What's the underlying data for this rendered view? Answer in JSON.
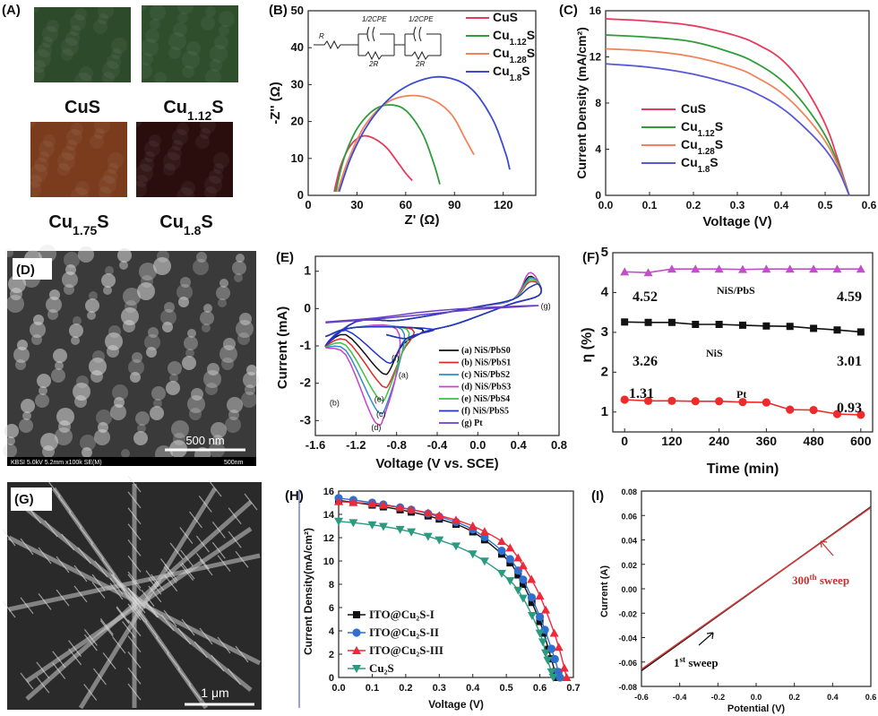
{
  "panels": {
    "A": {
      "letter": "(A)",
      "labels": [
        {
          "base": "CuS",
          "sub": ""
        },
        {
          "base": "Cu",
          "sub": "1.12",
          "tail": "S"
        },
        {
          "base": "Cu",
          "sub": "1.75",
          "tail": "S"
        },
        {
          "base": "Cu",
          "sub": "1.8",
          "tail": "S"
        }
      ],
      "colors": [
        "#2d4a2a",
        "#2e4e2c",
        "#7a3c1c",
        "#2a0d0d"
      ]
    },
    "D": {
      "letter": "(D)",
      "scale": "500 nm",
      "footer": "KBSI 5.0kV 5.2mm x100k SE(M)",
      "footer_right": "500nm"
    },
    "G": {
      "letter": "(G)",
      "scale": "1 μm"
    }
  },
  "chart_data": [
    {
      "id": "B",
      "type": "line",
      "letter": "(B)",
      "xlabel": "Z' (Ω)",
      "ylabel": "-Z'' (Ω)",
      "xlim": [
        0,
        140
      ],
      "ylim": [
        0,
        50
      ],
      "xticks": [
        0,
        30,
        60,
        90,
        120
      ],
      "yticks": [
        0,
        10,
        20,
        30,
        40,
        50
      ],
      "circuit_labels": [
        "R",
        "1/2CPE",
        "2R",
        "1/2CPE",
        "2R"
      ],
      "series": [
        {
          "name": "CuS",
          "sub": "",
          "color": "#e8395c",
          "points": [
            [
              16,
              1
            ],
            [
              20,
              8
            ],
            [
              26,
              13.5
            ],
            [
              33,
              16
            ],
            [
              40,
              15.5
            ],
            [
              48,
              13
            ],
            [
              55,
              9
            ],
            [
              60,
              6
            ],
            [
              64,
              4
            ]
          ]
        },
        {
          "name": "Cu",
          "sub": "1.12",
          "tail": "S",
          "color": "#2e9d3a",
          "points": [
            [
              17,
              1
            ],
            [
              22,
              10
            ],
            [
              30,
              18
            ],
            [
              40,
              23
            ],
            [
              50,
              24.5
            ],
            [
              60,
              23
            ],
            [
              70,
              17
            ],
            [
              77,
              9
            ],
            [
              81,
              3
            ]
          ]
        },
        {
          "name": "Cu",
          "sub": "1.28",
          "tail": "S",
          "color": "#f0845a",
          "points": [
            [
              18,
              1
            ],
            [
              25,
              10
            ],
            [
              35,
              19
            ],
            [
              48,
              25
            ],
            [
              62,
              27
            ],
            [
              76,
              26
            ],
            [
              88,
              22
            ],
            [
              97,
              15
            ],
            [
              102,
              11
            ]
          ]
        },
        {
          "name": "Cu",
          "sub": "1.8",
          "tail": "S",
          "color": "#3a4bd1",
          "points": [
            [
              19,
              1
            ],
            [
              27,
              11
            ],
            [
              38,
              20
            ],
            [
              52,
              27
            ],
            [
              68,
              31
            ],
            [
              84,
              32
            ],
            [
              100,
              29
            ],
            [
              113,
              21
            ],
            [
              121,
              12
            ],
            [
              124,
              7
            ]
          ]
        }
      ]
    },
    {
      "id": "C",
      "type": "line",
      "letter": "(C)",
      "xlabel": "Voltage (V)",
      "ylabel": "Current Density (mA/cm²)",
      "xlim": [
        0,
        0.6
      ],
      "ylim": [
        0,
        16
      ],
      "xticks": [
        "0.0",
        "0.1",
        "0.2",
        "0.3",
        "0.4",
        "0.5",
        "0.6"
      ],
      "yticks": [
        0,
        4,
        8,
        12,
        16
      ],
      "series": [
        {
          "name": "CuS",
          "sub": "",
          "color": "#e8395c",
          "points": [
            [
              0,
              15.3
            ],
            [
              0.1,
              15.1
            ],
            [
              0.2,
              14.7
            ],
            [
              0.3,
              13.8
            ],
            [
              0.35,
              13.0
            ],
            [
              0.4,
              11.8
            ],
            [
              0.45,
              9.6
            ],
            [
              0.5,
              6.2
            ],
            [
              0.53,
              3.0
            ],
            [
              0.555,
              0
            ]
          ]
        },
        {
          "name": "Cu",
          "sub": "1.12",
          "tail": "S",
          "color": "#2e9d3a",
          "points": [
            [
              0,
              13.9
            ],
            [
              0.1,
              13.7
            ],
            [
              0.2,
              13.3
            ],
            [
              0.3,
              12.2
            ],
            [
              0.35,
              11.3
            ],
            [
              0.4,
              10.0
            ],
            [
              0.45,
              8.0
            ],
            [
              0.5,
              5.2
            ],
            [
              0.53,
              2.7
            ],
            [
              0.555,
              0
            ]
          ]
        },
        {
          "name": "Cu",
          "sub": "1.28",
          "tail": "S",
          "color": "#f0845a",
          "points": [
            [
              0,
              12.7
            ],
            [
              0.1,
              12.5
            ],
            [
              0.2,
              12.0
            ],
            [
              0.3,
              11.0
            ],
            [
              0.35,
              10.1
            ],
            [
              0.4,
              8.9
            ],
            [
              0.45,
              7.1
            ],
            [
              0.5,
              4.7
            ],
            [
              0.53,
              2.5
            ],
            [
              0.555,
              0
            ]
          ]
        },
        {
          "name": "Cu",
          "sub": "1.8",
          "tail": "S",
          "color": "#5858d6",
          "points": [
            [
              0,
              11.4
            ],
            [
              0.1,
              11.1
            ],
            [
              0.2,
              10.5
            ],
            [
              0.3,
              9.5
            ],
            [
              0.35,
              8.7
            ],
            [
              0.4,
              7.6
            ],
            [
              0.45,
              6.0
            ],
            [
              0.5,
              4.0
            ],
            [
              0.53,
              2.2
            ],
            [
              0.555,
              0
            ]
          ]
        }
      ]
    },
    {
      "id": "E",
      "type": "line",
      "letter": "(E)",
      "xlabel": "Voltage (V vs. SCE)",
      "ylabel": "Current (mA)",
      "xlim": [
        -1.6,
        0.8
      ],
      "ylim": [
        -3.4,
        1.4
      ],
      "xticks": [
        "-1.6",
        "-1.2",
        "-0.8",
        "-0.4",
        "0.0",
        "0.4",
        "0.8"
      ],
      "yticks": [
        -3,
        -2,
        -1,
        0,
        1
      ],
      "series": [
        {
          "name": "(a) NiS/PbS0",
          "color": "#111111",
          "min": [
            -0.92,
            -1.75
          ],
          "start": -0.55,
          "top": 0.55,
          "amp": 0.85
        },
        {
          "name": "(b) NiS/PbS1",
          "color": "#e02a2a",
          "min": [
            -0.92,
            -2.1
          ],
          "start": -0.65,
          "top": 0.55,
          "amp": 0.7
        },
        {
          "name": "(c) NiS/PbS2",
          "color": "#2e8bcf",
          "min": [
            -0.96,
            -2.8
          ],
          "start": -0.75,
          "top": 0.6,
          "amp": 0.8
        },
        {
          "name": "(d) NiS/PbS3",
          "color": "#c842c8",
          "min": [
            -0.98,
            -3.1
          ],
          "start": -0.8,
          "top": 0.6,
          "amp": 0.95
        },
        {
          "name": "(e) NiS/PbS4",
          "color": "#3fbf3f",
          "min": [
            -0.95,
            -2.45
          ],
          "start": -0.7,
          "top": 0.58,
          "amp": 0.75
        },
        {
          "name": "(f) NiS/PbS5",
          "color": "#2233cc",
          "min": [
            -0.88,
            -1.45
          ],
          "start": -0.45,
          "top": 0.55,
          "amp": 0.55
        },
        {
          "name": "(g) Pt",
          "color": "#6a3fc8",
          "flat": true
        }
      ],
      "annotations": [
        "(a)",
        "(b)",
        "(c)",
        "(d)",
        "(e)",
        "(f)",
        "(g)"
      ]
    },
    {
      "id": "F",
      "type": "line",
      "letter": "(F)",
      "xlabel": "Time (min)",
      "ylabel": "η (%)",
      "xlim": [
        -30,
        630
      ],
      "ylim": [
        0.5,
        5
      ],
      "xticks": [
        0,
        120,
        240,
        360,
        480,
        600
      ],
      "yticks": [
        1,
        2,
        3,
        4,
        5
      ],
      "series": [
        {
          "name": "NiS/PbS",
          "color": "#c050c8",
          "marker": "triangle",
          "points": [
            [
              0,
              4.52
            ],
            [
              60,
              4.5
            ],
            [
              120,
              4.59
            ],
            [
              180,
              4.59
            ],
            [
              240,
              4.59
            ],
            [
              300,
              4.58
            ],
            [
              360,
              4.59
            ],
            [
              420,
              4.59
            ],
            [
              480,
              4.59
            ],
            [
              540,
              4.59
            ],
            [
              600,
              4.59
            ]
          ]
        },
        {
          "name": "NiS",
          "color": "#111111",
          "marker": "square",
          "points": [
            [
              0,
              3.26
            ],
            [
              60,
              3.25
            ],
            [
              120,
              3.25
            ],
            [
              180,
              3.2
            ],
            [
              240,
              3.2
            ],
            [
              300,
              3.18
            ],
            [
              360,
              3.16
            ],
            [
              420,
              3.15
            ],
            [
              480,
              3.1
            ],
            [
              540,
              3.06
            ],
            [
              600,
              3.01
            ]
          ]
        },
        {
          "name": "Pt",
          "color": "#ee2a2a",
          "marker": "circle",
          "points": [
            [
              0,
              1.31
            ],
            [
              60,
              1.28
            ],
            [
              120,
              1.28
            ],
            [
              180,
              1.27
            ],
            [
              240,
              1.27
            ],
            [
              300,
              1.25
            ],
            [
              360,
              1.24
            ],
            [
              420,
              1.06
            ],
            [
              480,
              1.05
            ],
            [
              540,
              0.95
            ],
            [
              600,
              0.93
            ]
          ]
        }
      ],
      "value_labels": [
        "4.52",
        "4.59",
        "3.26",
        "3.01",
        "1.31",
        "0.93"
      ],
      "series_labels": [
        "NiS/PbS",
        "NiS",
        "Pt"
      ]
    },
    {
      "id": "H",
      "type": "line",
      "letter": "(H)",
      "xlabel": "Voltage (V)",
      "ylabel": "Current Density(mA/cm²)",
      "xlim": [
        0,
        0.7
      ],
      "ylim": [
        0,
        16
      ],
      "xticks": [
        "0.0",
        "0.1",
        "0.2",
        "0.3",
        "0.4",
        "0.5",
        "0.6",
        "0.7"
      ],
      "yticks": [
        0,
        2,
        4,
        6,
        8,
        10,
        12,
        14,
        16
      ],
      "series": [
        {
          "name": "ITO@Cu₂S-I",
          "color": "#111111",
          "marker": "square",
          "points": [
            [
              0,
              15.2
            ],
            [
              0.1,
              14.8
            ],
            [
              0.2,
              14.3
            ],
            [
              0.3,
              13.6
            ],
            [
              0.4,
              12.5
            ],
            [
              0.5,
              10.2
            ],
            [
              0.55,
              8.0
            ],
            [
              0.6,
              4.8
            ],
            [
              0.63,
              2.0
            ],
            [
              0.65,
              0
            ]
          ]
        },
        {
          "name": "ITO@Cu₂S-II",
          "color": "#2f6fd0",
          "marker": "circle",
          "points": [
            [
              0,
              15.4
            ],
            [
              0.1,
              15.0
            ],
            [
              0.2,
              14.5
            ],
            [
              0.3,
              13.8
            ],
            [
              0.4,
              12.7
            ],
            [
              0.5,
              10.5
            ],
            [
              0.55,
              8.4
            ],
            [
              0.6,
              5.2
            ],
            [
              0.64,
              2.0
            ],
            [
              0.66,
              0
            ]
          ]
        },
        {
          "name": "ITO@Cu₂S-III",
          "color": "#ee2a3a",
          "marker": "triangle",
          "points": [
            [
              0,
              15.1
            ],
            [
              0.1,
              14.9
            ],
            [
              0.2,
              14.5
            ],
            [
              0.3,
              13.9
            ],
            [
              0.4,
              13.0
            ],
            [
              0.5,
              11.4
            ],
            [
              0.55,
              9.6
            ],
            [
              0.6,
              7.0
            ],
            [
              0.65,
              3.2
            ],
            [
              0.68,
              0
            ]
          ]
        },
        {
          "name": "Cu₂S",
          "color": "#2a9a80",
          "marker": "triangle-down",
          "points": [
            [
              0,
              13.4
            ],
            [
              0.1,
              13.1
            ],
            [
              0.2,
              12.6
            ],
            [
              0.3,
              11.8
            ],
            [
              0.4,
              10.6
            ],
            [
              0.5,
              8.6
            ],
            [
              0.55,
              6.8
            ],
            [
              0.6,
              3.8
            ],
            [
              0.62,
              1.8
            ],
            [
              0.64,
              0
            ]
          ]
        }
      ]
    },
    {
      "id": "I",
      "type": "line",
      "letter": "(I)",
      "xlabel": "Potential (V)",
      "ylabel": "Current (A)",
      "xlim": [
        -0.6,
        0.6
      ],
      "ylim": [
        -0.08,
        0.08
      ],
      "xticks": [
        "-0.6",
        "-0.4",
        "-0.2",
        "0.0",
        "0.2",
        "0.4",
        "0.6"
      ],
      "yticks": [
        "-0.08",
        "-0.06",
        "-0.04",
        "-0.02",
        "0.00",
        "0.02",
        "0.04",
        "0.06",
        "0.08"
      ],
      "series": [
        {
          "name": "1st sweep",
          "color": "#111111",
          "points": [
            [
              -0.6,
              -0.067
            ],
            [
              0.6,
              0.067
            ]
          ]
        },
        {
          "name": "300th sweep",
          "color": "#d23a3a",
          "points": [
            [
              -0.6,
              -0.066
            ],
            [
              0.6,
              0.0665
            ]
          ]
        }
      ],
      "labels": {
        "first": "1",
        "first_sup": "st",
        "first_tail": " sweep",
        "last": "300",
        "last_sup": "th",
        "last_tail": " sweep"
      }
    }
  ]
}
